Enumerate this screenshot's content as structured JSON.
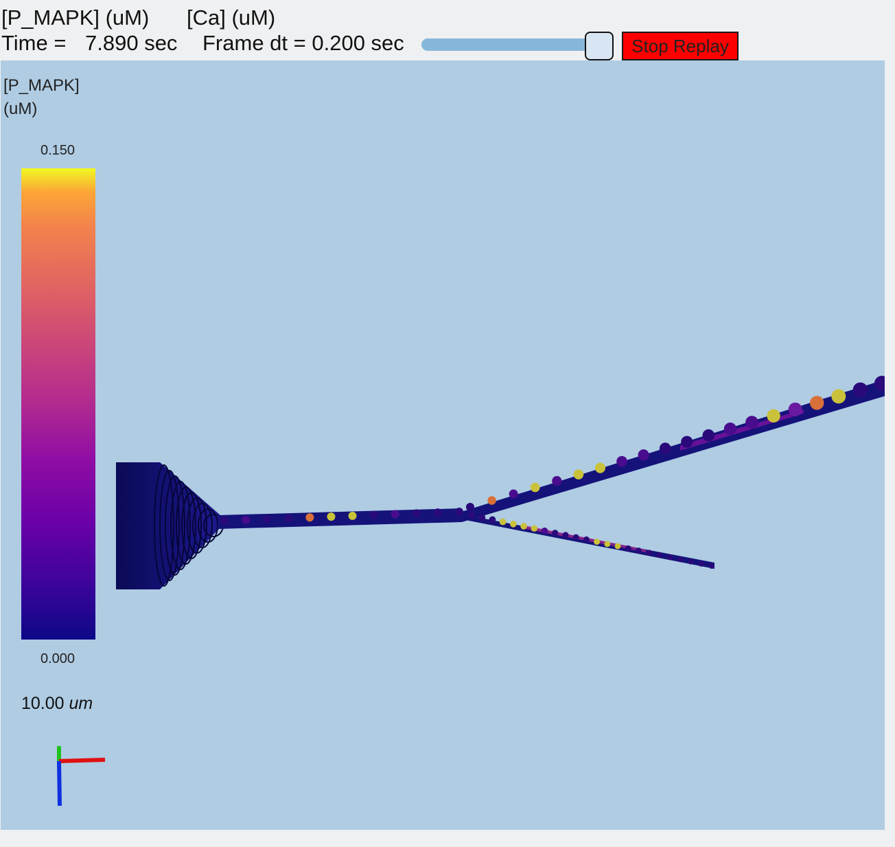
{
  "tabs": [
    {
      "label": "[P_MAPK] (uM)"
    },
    {
      "label": "[Ca] (uM)"
    }
  ],
  "status": {
    "time_label": "Time =",
    "time_value": "7.890 sec",
    "frame_label": "Frame dt = 0.200 sec"
  },
  "controls": {
    "stop_label": "Stop Replay",
    "slider_fraction": 0.95
  },
  "colorbar": {
    "title_line1": "[P_MAPK]",
    "title_line2": "(uM)",
    "max_label": "0.150",
    "min_label": "0.000",
    "colormap": "plasma"
  },
  "scale_bar": {
    "value": "10.00",
    "unit": "um"
  },
  "colors": {
    "background": "#afcce3",
    "stop_button": "#ff0000",
    "slider_track": "#86b7da"
  }
}
